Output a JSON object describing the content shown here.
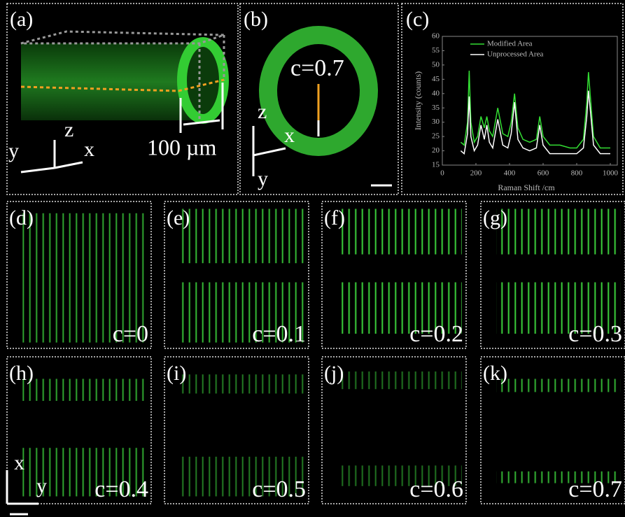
{
  "panel_a": {
    "label": "(a)",
    "scale_bar": "100 µm",
    "axis_z": "z",
    "axis_y": "y",
    "axis_x": "x"
  },
  "panel_b": {
    "label": "(b)",
    "annotation": "c=0.7",
    "axis_z": "z",
    "axis_x": "x",
    "axis_y": "y"
  },
  "chart_data": {
    "type": "line",
    "panel_label": "(c)",
    "x_label": "Raman Shift /cm",
    "y_label": "Intensity (counts)",
    "x": [
      110,
      130,
      150,
      160,
      170,
      190,
      210,
      230,
      250,
      265,
      280,
      300,
      330,
      360,
      390,
      410,
      430,
      450,
      480,
      520,
      560,
      580,
      600,
      640,
      700,
      760,
      800,
      840,
      860,
      870,
      880,
      900,
      940,
      1000
    ],
    "series": [
      {
        "name": "Modified Area",
        "color": "#33dd33",
        "values": [
          23,
          22,
          30,
          48,
          30,
          23,
          25,
          32,
          28,
          32,
          27,
          25,
          35,
          26,
          25,
          30,
          40,
          28,
          24,
          23,
          24,
          32,
          25,
          22,
          22,
          21,
          21,
          24,
          37,
          47.5,
          40,
          25,
          21,
          21
        ]
      },
      {
        "name": "Unprocessed Area",
        "color": "#ffffff",
        "values": [
          20,
          19,
          26,
          39,
          25,
          20,
          22,
          29,
          24,
          29,
          23,
          21,
          31,
          22,
          21,
          26,
          37,
          24,
          21,
          20,
          21,
          29,
          22,
          19,
          19,
          19,
          19,
          21,
          32,
          41,
          35,
          22,
          19,
          19
        ]
      }
    ],
    "xlim": [
      0,
      1000
    ],
    "xticks": [
      0,
      200,
      400,
      600,
      800,
      1000
    ],
    "ylim": [
      15,
      60
    ],
    "yticks": [
      15,
      20,
      25,
      30,
      35,
      40,
      45,
      50,
      55,
      60
    ],
    "legend": "upper-left"
  },
  "panels": [
    {
      "label": "(d)",
      "caption": "c=0"
    },
    {
      "label": "(e)",
      "caption": "c=0.1"
    },
    {
      "label": "(f)",
      "caption": "c=0.2"
    },
    {
      "label": "(g)",
      "caption": "c=0.3"
    },
    {
      "label": "(h)",
      "caption": "c=0.4"
    },
    {
      "label": "(i)",
      "caption": "c=0.5"
    },
    {
      "label": "(j)",
      "caption": "c=0.6"
    },
    {
      "label": "(k)",
      "caption": "c=0.7"
    }
  ],
  "corner_axes": {
    "x": "x",
    "y": "y"
  }
}
